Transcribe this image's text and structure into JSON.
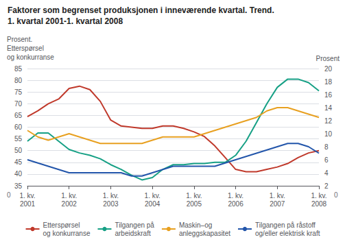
{
  "chart_data": {
    "type": "line",
    "title": "Faktorer som begrenset produksjonen i inneværende kvartal. Trend.",
    "subtitle": "1. kvartal 2001-1. kvartal 2008",
    "ylabel": "Prosent.\nEtterspørsel\nog konkurranse",
    "y2label": "Prosent",
    "categories": [
      "1. kv.\n2001",
      null,
      null,
      null,
      "1. kv.\n2002",
      null,
      null,
      null,
      "1. kv.\n2003",
      null,
      null,
      null,
      "1. kv.\n2004",
      null,
      null,
      null,
      "1. kv.\n2005",
      null,
      null,
      null,
      "1. kv.\n2006",
      null,
      null,
      null,
      "1. kv.\n2007",
      null,
      null,
      null,
      "1. kv.\n2008"
    ],
    "series": [
      {
        "name": "Etterspørsel\nog konkurranse",
        "color": "#c0392b",
        "values": [
          64.5,
          67.0,
          70.0,
          72.0,
          76.5,
          77.5,
          76.0,
          71.0,
          63.0,
          60.5,
          60.0,
          59.5,
          59.5,
          60.5,
          60.5,
          59.5,
          58.0,
          56.0,
          52.0,
          47.0,
          42.0,
          41.0,
          41.0,
          42.0,
          43.0,
          44.5,
          47.0,
          49.0,
          50.0
        ]
      },
      {
        "name": "Tilgangen på\narbeidskraft",
        "color": "#16a085",
        "values": [
          54.0,
          57.5,
          57.5,
          54.0,
          50.5,
          49.0,
          48.0,
          46.5,
          44.0,
          42.0,
          39.5,
          37.5,
          38.5,
          42.0,
          44.0,
          44.0,
          44.5,
          44.5,
          45.0,
          45.0,
          48.0,
          54.0,
          62.0,
          70.0,
          77.0,
          80.5,
          80.5,
          79.0,
          75.5
        ]
      },
      {
        "name": "Maskin–og\nanleggskapasitet",
        "color": "#e8a020",
        "axis": "y2",
        "values": [
          10.5,
          9.5,
          9.0,
          9.5,
          10.0,
          9.5,
          9.0,
          8.5,
          8.5,
          8.5,
          8.5,
          8.5,
          9.0,
          9.5,
          9.5,
          9.5,
          9.5,
          10.0,
          10.5,
          11.0,
          11.5,
          12.0,
          12.5,
          13.5,
          14.0,
          14.0,
          13.5,
          13.0,
          12.5
        ]
      },
      {
        "name": "Tilgangen på råstoff\nog/eller elektrisk kraft",
        "color": "#2255aa",
        "axis": "y2",
        "values": [
          6.0,
          5.5,
          5.0,
          4.5,
          4.0,
          4.0,
          4.0,
          4.0,
          4.0,
          4.0,
          3.5,
          3.5,
          4.0,
          4.5,
          5.0,
          5.0,
          5.0,
          5.0,
          5.0,
          5.5,
          6.0,
          6.5,
          7.0,
          7.5,
          8.0,
          8.5,
          8.5,
          8.0,
          7.0
        ]
      }
    ],
    "ylim": [
      35,
      85
    ],
    "yticks": [
      35,
      40,
      45,
      50,
      55,
      60,
      65,
      70,
      75,
      80,
      85
    ],
    "y2lim": [
      2,
      20
    ],
    "y2ticks": [
      2,
      4,
      6,
      8,
      10,
      12,
      14,
      16,
      18,
      20
    ],
    "grid": true,
    "legend": "bottom",
    "annotations": [
      "0",
      "0"
    ]
  }
}
